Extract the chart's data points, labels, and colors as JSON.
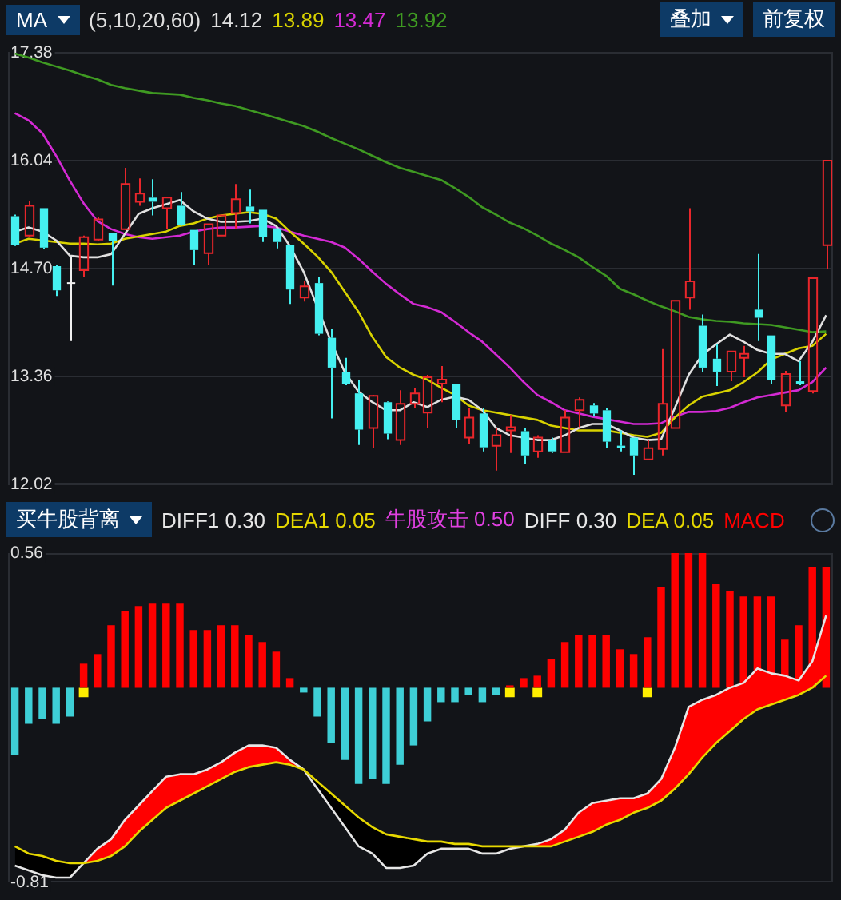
{
  "chart_data": [
    {
      "type": "candlestick",
      "annotations": [
        "MA",
        "(5,10,20,60)",
        "叠加",
        "前复权"
      ],
      "categories": [
        null,
        null,
        null,
        null,
        null,
        null,
        null,
        null,
        null,
        null,
        null,
        null,
        null,
        null,
        null,
        null,
        null,
        null,
        null,
        null,
        null,
        null,
        null,
        null,
        null,
        null,
        null,
        null,
        null,
        null,
        null,
        null,
        null,
        null,
        null,
        null,
        null,
        null,
        null,
        null,
        null,
        null,
        null,
        null,
        null,
        null,
        null,
        null,
        null,
        null,
        null,
        null,
        null,
        null,
        null,
        null,
        null,
        null,
        null,
        null
      ],
      "ohlc": [
        [
          15.35,
          15.37,
          14.98,
          14.99
        ],
        [
          15.11,
          15.54,
          15.09,
          15.48
        ],
        [
          15.45,
          15.45,
          14.94,
          14.96
        ],
        [
          14.73,
          14.74,
          14.36,
          14.43
        ],
        [
          14.52,
          14.85,
          13.8,
          14.52
        ],
        [
          14.68,
          15.11,
          14.59,
          15.09
        ],
        [
          15.06,
          15.34,
          15.04,
          15.31
        ],
        [
          15.14,
          15.14,
          14.49,
          15.04
        ],
        [
          15.19,
          15.95,
          15.18,
          15.75
        ],
        [
          15.53,
          15.82,
          15.48,
          15.63
        ],
        [
          15.58,
          15.81,
          15.36,
          15.53
        ],
        [
          15.45,
          15.58,
          15.19,
          15.58
        ],
        [
          15.48,
          15.65,
          15.23,
          15.24
        ],
        [
          15.18,
          15.18,
          14.75,
          14.93
        ],
        [
          14.89,
          15.25,
          14.75,
          15.25
        ],
        [
          15.11,
          15.36,
          15.11,
          15.36
        ],
        [
          15.39,
          15.75,
          15.2,
          15.56
        ],
        [
          15.47,
          15.68,
          15.26,
          15.41
        ],
        [
          15.43,
          15.43,
          15.03,
          15.09
        ],
        [
          15.2,
          15.2,
          14.95,
          15.03
        ],
        [
          14.99,
          14.99,
          14.26,
          14.44
        ],
        [
          14.34,
          14.55,
          14.29,
          14.48
        ],
        [
          14.52,
          14.59,
          13.87,
          13.89
        ],
        [
          13.84,
          13.95,
          12.84,
          13.47
        ],
        [
          13.41,
          13.59,
          13.25,
          13.27
        ],
        [
          13.15,
          13.32,
          12.51,
          12.7
        ],
        [
          12.72,
          13.13,
          12.47,
          13.12
        ],
        [
          13.04,
          13.05,
          12.58,
          12.65
        ],
        [
          12.57,
          13.19,
          12.51,
          13.02
        ],
        [
          13.02,
          13.22,
          12.97,
          13.15
        ],
        [
          12.91,
          13.38,
          12.72,
          13.35
        ],
        [
          13.27,
          13.49,
          13.04,
          13.32
        ],
        [
          13.27,
          13.27,
          12.72,
          12.82
        ],
        [
          12.6,
          12.97,
          12.52,
          12.85
        ],
        [
          12.9,
          12.97,
          12.43,
          12.48
        ],
        [
          12.5,
          12.72,
          12.19,
          12.63
        ],
        [
          12.69,
          12.88,
          12.41,
          12.73
        ],
        [
          12.68,
          12.72,
          12.27,
          12.38
        ],
        [
          12.43,
          12.63,
          12.35,
          12.6
        ],
        [
          12.57,
          12.6,
          12.41,
          12.43
        ],
        [
          12.42,
          12.94,
          12.42,
          12.85
        ],
        [
          12.94,
          13.1,
          12.73,
          13.07
        ],
        [
          13.0,
          13.03,
          12.86,
          12.9
        ],
        [
          12.94,
          12.97,
          12.47,
          12.55
        ],
        [
          12.5,
          12.69,
          12.43,
          12.47
        ],
        [
          12.6,
          12.6,
          12.14,
          12.38
        ],
        [
          12.33,
          12.57,
          12.32,
          12.47
        ],
        [
          12.46,
          13.7,
          12.38,
          13.02
        ],
        [
          12.72,
          14.3,
          12.72,
          14.3
        ],
        [
          14.34,
          15.45,
          14.19,
          14.54
        ],
        [
          13.99,
          14.13,
          13.41,
          13.47
        ],
        [
          13.58,
          13.76,
          13.24,
          13.42
        ],
        [
          13.42,
          13.67,
          13.3,
          13.67
        ],
        [
          13.59,
          13.74,
          13.35,
          13.64
        ],
        [
          14.19,
          14.88,
          13.8,
          14.09
        ],
        [
          13.87,
          13.87,
          13.27,
          13.32
        ],
        [
          13.0,
          13.43,
          12.92,
          13.39
        ],
        [
          13.3,
          13.55,
          13.25,
          13.27
        ],
        [
          13.18,
          14.58,
          13.15,
          14.58
        ],
        [
          14.99,
          16.04,
          14.7,
          16.04
        ]
      ],
      "series": [
        {
          "name": "14.12",
          "type": "line",
          "color": "#e0e0e0",
          "values": [
            15.16,
            15.21,
            15.16,
            15.05,
            14.86,
            14.84,
            14.84,
            14.88,
            15.13,
            15.38,
            15.45,
            15.5,
            15.55,
            15.41,
            15.32,
            15.28,
            15.28,
            15.29,
            15.32,
            15.23,
            14.98,
            14.66,
            14.22,
            13.79,
            13.41,
            13.17,
            13.04,
            12.94,
            12.94,
            13.04,
            12.98,
            13.07,
            13.11,
            13.07,
            12.94,
            12.72,
            12.63,
            12.6,
            12.57,
            12.57,
            12.63,
            12.72,
            12.77,
            12.77,
            12.69,
            12.6,
            12.57,
            12.58,
            12.97,
            13.38,
            13.63,
            13.76,
            13.88,
            13.79,
            13.69,
            13.64,
            13.64,
            13.55,
            13.79,
            14.12
          ]
        },
        {
          "name": "13.89",
          "type": "line",
          "color": "#d8d200",
          "values": [
            15.01,
            15.07,
            15.05,
            15.03,
            15.01,
            15.01,
            15.0,
            15.01,
            15.07,
            15.1,
            15.13,
            15.16,
            15.23,
            15.26,
            15.32,
            15.36,
            15.38,
            15.4,
            15.38,
            15.32,
            15.16,
            15.01,
            14.85,
            14.66,
            14.41,
            14.16,
            13.85,
            13.6,
            13.47,
            13.38,
            13.32,
            13.22,
            13.13,
            13.0,
            12.94,
            12.91,
            12.88,
            12.85,
            12.82,
            12.75,
            12.72,
            12.69,
            12.69,
            12.69,
            12.66,
            12.63,
            12.61,
            12.66,
            12.85,
            13.0,
            13.11,
            13.15,
            13.19,
            13.29,
            13.41,
            13.57,
            13.64,
            13.71,
            13.74,
            13.89
          ]
        },
        {
          "name": "13.47",
          "type": "line",
          "color": "#d42ad4",
          "values": [
            16.63,
            16.54,
            16.38,
            16.1,
            15.79,
            15.51,
            15.29,
            15.19,
            15.13,
            15.09,
            15.07,
            15.09,
            15.11,
            15.16,
            15.19,
            15.21,
            15.21,
            15.22,
            15.23,
            15.21,
            15.16,
            15.11,
            15.07,
            15.03,
            14.96,
            14.82,
            14.66,
            14.51,
            14.38,
            14.26,
            14.22,
            14.16,
            14.04,
            13.91,
            13.79,
            13.63,
            13.47,
            13.29,
            13.13,
            13.04,
            12.94,
            12.9,
            12.86,
            12.83,
            12.8,
            12.77,
            12.77,
            12.78,
            12.86,
            12.92,
            12.92,
            12.93,
            12.97,
            13.04,
            13.1,
            13.13,
            13.16,
            13.19,
            13.29,
            13.47
          ]
        },
        {
          "name": "13.92",
          "type": "line",
          "color": "#3f9a22",
          "values": [
            17.37,
            17.32,
            17.26,
            17.21,
            17.16,
            17.1,
            17.05,
            16.98,
            16.94,
            16.91,
            16.88,
            16.87,
            16.86,
            16.82,
            16.79,
            16.75,
            16.72,
            16.67,
            16.62,
            16.57,
            16.52,
            16.47,
            16.4,
            16.32,
            16.25,
            16.18,
            16.1,
            16.02,
            15.95,
            15.9,
            15.85,
            15.8,
            15.7,
            15.59,
            15.46,
            15.37,
            15.27,
            15.2,
            15.11,
            15.01,
            14.93,
            14.84,
            14.72,
            14.61,
            14.45,
            14.38,
            14.3,
            14.23,
            14.17,
            14.1,
            14.07,
            14.05,
            14.04,
            14.02,
            14.01,
            14.0,
            13.97,
            13.94,
            13.91,
            13.92
          ]
        }
      ],
      "ylim": [
        12.02,
        17.38
      ],
      "yticks": [
        12.02,
        {
          "value": 13.36,
          "label": "13.36"
        },
        {
          "value": 14.7,
          "label": "14.70"
        },
        16.04,
        17.38
      ],
      "grid": "y",
      "tick_labels": "y",
      "marker": "none",
      "line_style": "solid"
    },
    {
      "type": "bar",
      "annotations": [
        "买牛股背离",
        "DIFF1 0.30",
        "DEA1 0.05",
        "牛股攻击 0.50"
      ],
      "categories": [
        null,
        null,
        null,
        null,
        null,
        null,
        null,
        null,
        null,
        null,
        null,
        null,
        null,
        null,
        null,
        null,
        null,
        null,
        null,
        null,
        null,
        null,
        null,
        null,
        null,
        null,
        null,
        null,
        null,
        null,
        null,
        null,
        null,
        null,
        null,
        null,
        null,
        null,
        null,
        null,
        null,
        null,
        null,
        null,
        null,
        null,
        null,
        null,
        null,
        null,
        null,
        null,
        null,
        null,
        null,
        null,
        null,
        null,
        null,
        null
      ],
      "series": [
        {
          "name": "DIFF 0.30",
          "type": "line",
          "color": "#e6e6e6",
          "values": [
            -0.74,
            -0.76,
            -0.78,
            -0.79,
            -0.79,
            -0.73,
            -0.67,
            -0.63,
            -0.55,
            -0.49,
            -0.43,
            -0.37,
            -0.36,
            -0.36,
            -0.34,
            -0.31,
            -0.27,
            -0.24,
            -0.24,
            -0.25,
            -0.3,
            -0.34,
            -0.42,
            -0.5,
            -0.58,
            -0.66,
            -0.69,
            -0.75,
            -0.75,
            -0.74,
            -0.69,
            -0.67,
            -0.67,
            -0.67,
            -0.69,
            -0.69,
            -0.67,
            -0.66,
            -0.65,
            -0.63,
            -0.59,
            -0.52,
            -0.48,
            -0.47,
            -0.46,
            -0.46,
            -0.44,
            -0.38,
            -0.25,
            -0.08,
            -0.05,
            -0.03,
            0.0,
            0.02,
            0.08,
            0.06,
            0.05,
            0.03,
            0.11,
            0.3
          ]
        },
        {
          "name": "DEA 0.05",
          "type": "line",
          "color": "#e6d800",
          "values": [
            -0.66,
            -0.69,
            -0.7,
            -0.72,
            -0.73,
            -0.73,
            -0.72,
            -0.7,
            -0.66,
            -0.6,
            -0.55,
            -0.5,
            -0.47,
            -0.44,
            -0.41,
            -0.38,
            -0.35,
            -0.33,
            -0.32,
            -0.31,
            -0.32,
            -0.34,
            -0.39,
            -0.44,
            -0.49,
            -0.54,
            -0.58,
            -0.61,
            -0.62,
            -0.63,
            -0.64,
            -0.64,
            -0.65,
            -0.65,
            -0.66,
            -0.66,
            -0.66,
            -0.66,
            -0.66,
            -0.66,
            -0.64,
            -0.62,
            -0.6,
            -0.57,
            -0.55,
            -0.52,
            -0.5,
            -0.47,
            -0.42,
            -0.36,
            -0.29,
            -0.23,
            -0.18,
            -0.13,
            -0.09,
            -0.07,
            -0.05,
            -0.03,
            0.0,
            0.05
          ]
        },
        {
          "name": "MACD",
          "color": "#ff0000",
          "values": [
            -0.28,
            -0.15,
            -0.13,
            -0.15,
            -0.12,
            0.1,
            0.14,
            0.26,
            0.32,
            0.34,
            0.35,
            0.35,
            0.35,
            0.24,
            0.24,
            0.26,
            0.26,
            0.22,
            0.19,
            0.15,
            0.04,
            -0.02,
            -0.12,
            -0.23,
            -0.3,
            -0.4,
            -0.38,
            -0.4,
            -0.32,
            -0.24,
            -0.14,
            -0.06,
            -0.06,
            -0.03,
            -0.06,
            -0.03,
            0.01,
            0.04,
            0.05,
            0.12,
            0.19,
            0.22,
            0.22,
            0.22,
            0.16,
            0.14,
            0.21,
            0.42,
            0.56,
            0.56,
            0.56,
            0.43,
            0.4,
            0.38,
            0.38,
            0.38,
            0.2,
            0.26,
            0.5,
            0.5
          ],
          "colors": [
            "#3ecfd6",
            "#3ecfd6",
            "#3ecfd6",
            "#3ecfd6",
            "#3ecfd6",
            "#ff0000",
            "#ff0000",
            "#ff0000",
            "#ff0000",
            "#ff0000",
            "#ff0000",
            "#ff0000",
            "#ff0000",
            "#ff0000",
            "#ff0000",
            "#ff0000",
            "#ff0000",
            "#ff0000",
            "#ff0000",
            "#ff0000",
            "#ff0000",
            "#3ecfd6",
            "#3ecfd6",
            "#3ecfd6",
            "#3ecfd6",
            "#3ecfd6",
            "#3ecfd6",
            "#3ecfd6",
            "#3ecfd6",
            "#3ecfd6",
            "#3ecfd6",
            "#3ecfd6",
            "#3ecfd6",
            "#3ecfd6",
            "#3ecfd6",
            "#3ecfd6",
            "#ff0000",
            "#ff0000",
            "#ff0000",
            "#ff0000",
            "#ff0000",
            "#ff0000",
            "#ff0000",
            "#ff0000",
            "#ff0000",
            "#ff0000",
            "#ff0000",
            "#ff0000",
            "#ff0000",
            "#ff0000",
            "#ff0000",
            "#ff0000",
            "#ff0000",
            "#ff0000",
            "#ff0000",
            "#ff0000",
            "#ff0000",
            "#ff0000",
            "#ff0000",
            "#ff0000"
          ]
        },
        {
          "type": "scatter",
          "color": "#ffee00",
          "marker": "square",
          "values": [
            null,
            null,
            null,
            null,
            null,
            -0.02,
            null,
            null,
            null,
            null,
            null,
            null,
            null,
            null,
            null,
            null,
            null,
            null,
            null,
            null,
            null,
            null,
            null,
            null,
            null,
            null,
            null,
            null,
            null,
            null,
            null,
            null,
            null,
            null,
            null,
            null,
            -0.02,
            null,
            -0.02,
            null,
            null,
            null,
            null,
            null,
            null,
            null,
            -0.02,
            null,
            null,
            null,
            null,
            null,
            null,
            null,
            null,
            null,
            null,
            null,
            null,
            null
          ]
        }
      ],
      "ylim": [
        -0.81,
        0.56
      ],
      "yticks": [
        -0.81,
        0.56
      ],
      "tick_labels": "y",
      "marker": "none",
      "line_style": "solid"
    }
  ]
}
